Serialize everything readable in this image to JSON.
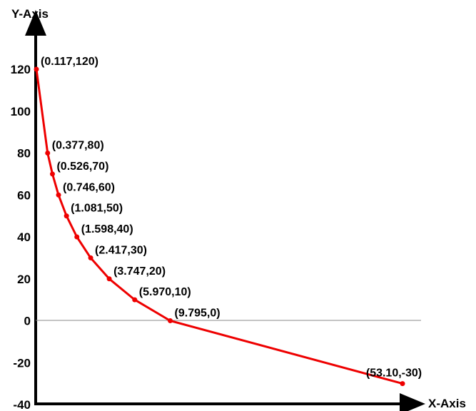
{
  "chart_data": {
    "type": "line",
    "xlabel": "X-Axis",
    "ylabel": "Y-Axis",
    "ylim": [
      -40,
      120
    ],
    "yticks": [
      "120",
      "100",
      "80",
      "60",
      "40",
      "20",
      "0",
      "-20",
      "-40"
    ],
    "series": [
      {
        "color": "#ee0000",
        "x": [
          0.117,
          0.377,
          0.526,
          0.746,
          1.081,
          1.598,
          2.417,
          3.747,
          5.97,
          9.795,
          53.1
        ],
        "y": [
          120,
          80,
          70,
          60,
          50,
          40,
          30,
          20,
          10,
          0,
          -30
        ],
        "labels": [
          "(0.117,120)",
          "(0.377,80)",
          "(0.526,70)",
          "(0.746,60)",
          "(1.081,50)",
          "(1.598,40)",
          "(2.417,30)",
          "(3.747,20)",
          "(5.970,10)",
          "(9.795,0)",
          "(53.10,-30)"
        ]
      }
    ],
    "grid": false,
    "zero_line": true,
    "colors": {
      "axis": "#000000",
      "zero_line": "#888888",
      "series": "#ee0000"
    }
  }
}
